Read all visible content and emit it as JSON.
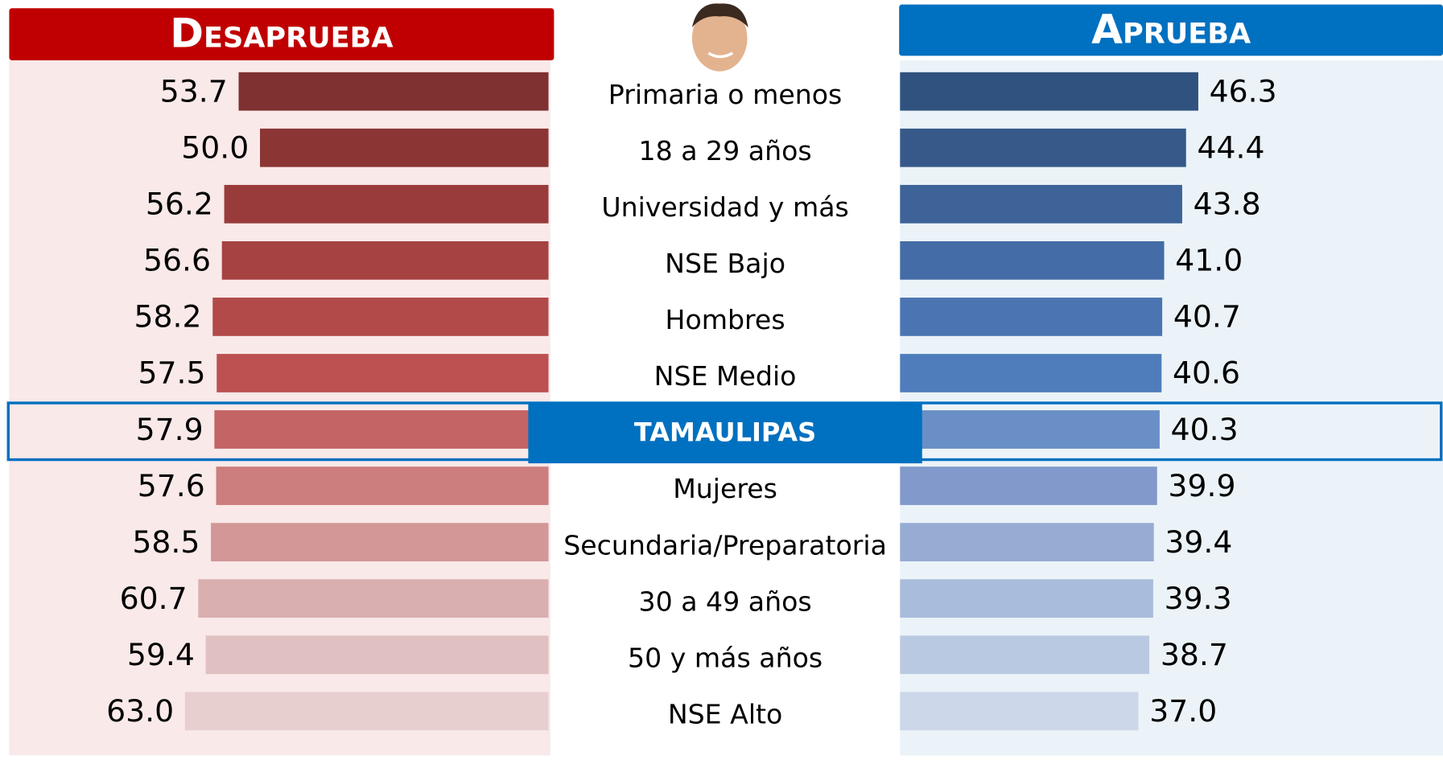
{
  "chart_data": {
    "type": "butterfly",
    "categories": [
      "Primaria o menos",
      "18 a 29 años",
      "Universidad y más",
      "NSE Bajo",
      "Hombres",
      "NSE Medio",
      "TAMAULIPAS",
      "Mujeres",
      "Secundaria/Preparatoria",
      "30 a 49 años",
      "50 y más años",
      "NSE Alto"
    ],
    "highlight_index": 6,
    "series": [
      {
        "name": "Desaprueba",
        "side": "left",
        "header_color": "#c00000",
        "panel_color": "#f9e9e9",
        "xlim": [
          0,
          100
        ],
        "values": [
          53.7,
          50.0,
          56.2,
          56.6,
          58.2,
          57.5,
          57.9,
          57.6,
          58.5,
          60.7,
          59.4,
          63.0
        ],
        "value_labels": [
          "53.7",
          "50.0",
          "56.2",
          "56.6",
          "58.2",
          "57.5",
          "57.9",
          "57.6",
          "58.5",
          "60.7",
          "59.4",
          "63.0"
        ],
        "colors": [
          "#7f3030",
          "#8c3535",
          "#993b3b",
          "#a64242",
          "#b24a4a",
          "#bd5050",
          "#c46464",
          "#cc7d7d",
          "#d39797",
          "#daafaf",
          "#e0c0c0",
          "#e8cfcf"
        ]
      },
      {
        "name": "Aprueba",
        "side": "right",
        "header_color": "#0070c0",
        "panel_color": "#ebf3f8",
        "xlim": [
          0,
          100
        ],
        "values": [
          46.3,
          44.4,
          43.8,
          41.0,
          40.7,
          40.6,
          40.3,
          39.9,
          39.4,
          39.3,
          38.7,
          37.0
        ],
        "value_labels": [
          "46.3",
          "44.4",
          "43.8",
          "41.0",
          "40.7",
          "40.6",
          "40.3",
          "39.9",
          "39.4",
          "39.3",
          "38.7",
          "37.0"
        ],
        "colors": [
          "#30527e",
          "#36598a",
          "#3d6398",
          "#446ca6",
          "#4a75b2",
          "#4f7dbc",
          "#6a8fc6",
          "#8199cb",
          "#97acd3",
          "#a9bcdb",
          "#bac9e2",
          "#ccd7e9"
        ]
      }
    ]
  }
}
